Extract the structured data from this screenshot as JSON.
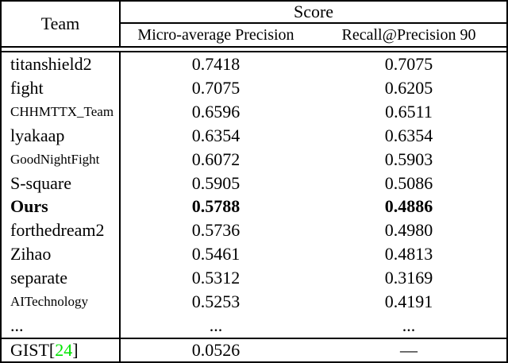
{
  "table": {
    "header": {
      "team": "Team",
      "score": "Score",
      "col1": "Micro-average Precision",
      "col2": "Recall@Precision 90"
    },
    "rows": [
      {
        "team": "titanshield2",
        "map": "0.7418",
        "recall": "0.7075"
      },
      {
        "team": "fight",
        "map": "0.7075",
        "recall": "0.6205"
      },
      {
        "team": "CHHMTTX_Team",
        "map": "0.6596",
        "recall": "0.6511"
      },
      {
        "team": "lyakaap",
        "map": "0.6354",
        "recall": "0.6354"
      },
      {
        "team": "GoodNightFight",
        "map": "0.6072",
        "recall": "0.5903"
      },
      {
        "team": "S-square",
        "map": "0.5905",
        "recall": "0.5086"
      },
      {
        "team": "Ours",
        "map": "0.5788",
        "recall": "0.4886"
      },
      {
        "team": "forthedream2",
        "map": "0.5736",
        "recall": "0.4980"
      },
      {
        "team": "Zihao",
        "map": "0.5461",
        "recall": "0.4813"
      },
      {
        "team": "separate",
        "map": "0.5312",
        "recall": "0.3169"
      },
      {
        "team": "AITechnology",
        "map": "0.5253",
        "recall": "0.4191"
      },
      {
        "team": "...",
        "map": "...",
        "recall": "..."
      }
    ],
    "footer": {
      "team": "GIST ",
      "bracket_open": "[",
      "citation": "24",
      "bracket_close": "]",
      "map": "0.0526",
      "recall": "—"
    },
    "colors": {
      "citation_green": "#00E400",
      "text": "#000000",
      "background": "#ffffff"
    }
  }
}
